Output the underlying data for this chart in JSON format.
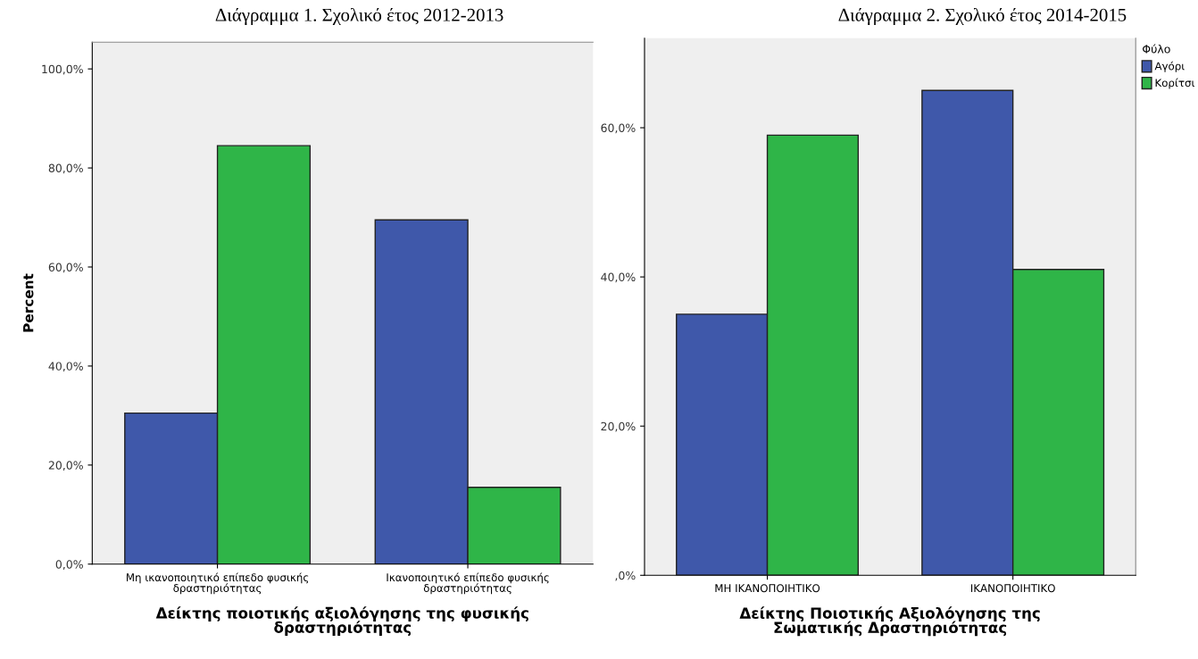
{
  "chart_data": [
    {
      "type": "bar",
      "title": "Διάγραμμα 1. Σχολικό έτος 2012-2013",
      "xlabel": "Δείκτης ποιοτικής αξιολόγησης της φυσικής δραστηριότητας",
      "ylabel": "Percent",
      "categories": [
        "Μη ικανοποιητικό επίπεδο φυσικής δραστηριότητας",
        "Ικανοποιητικό επίπεδο φυσικής δραστηριότητας"
      ],
      "series": [
        {
          "color": "#3f58aa",
          "values": [
            30.5,
            69.5
          ]
        },
        {
          "color": "#2fb548",
          "values": [
            84.5,
            15.5
          ]
        }
      ],
      "ylim": [
        0,
        105.4
      ],
      "yticks": [
        {
          "value": 0,
          "label": "0,0%"
        },
        {
          "value": 20,
          "label": "20,0%"
        },
        {
          "value": 40,
          "label": "40,0%"
        },
        {
          "value": 60,
          "label": "60,0%"
        },
        {
          "value": 80,
          "label": "80,0%"
        },
        {
          "value": 100,
          "label": "100,0%"
        }
      ],
      "grid": false
    },
    {
      "type": "bar",
      "title": "Διάγραμμα 2. Σχολικό έτος 2014-2015",
      "xlabel": "Δείκτης Ποιοτικής Αξιολόγησης της Σωματικής Δραστηριότητας",
      "legend_title": "Φύλο",
      "categories": [
        "ΜΗ ΙΚΑΝΟΠΟΙΗΤΙΚΟ",
        "ΙΚΑΝΟΠΟΙΗΤΙΚΟ"
      ],
      "series": [
        {
          "name": "Αγόρι",
          "color": "#3f58aa",
          "values": [
            35,
            65
          ]
        },
        {
          "name": "Κορίτσι",
          "color": "#2fb548",
          "values": [
            59,
            41
          ]
        }
      ],
      "ylim": [
        0,
        72
      ],
      "yticks": [
        {
          "value": 0,
          "label": ",0%"
        },
        {
          "value": 20,
          "label": "20,0%"
        },
        {
          "value": 40,
          "label": "40,0%"
        },
        {
          "value": 60,
          "label": "60,0%"
        }
      ],
      "grid": false,
      "legend": "top right"
    }
  ]
}
